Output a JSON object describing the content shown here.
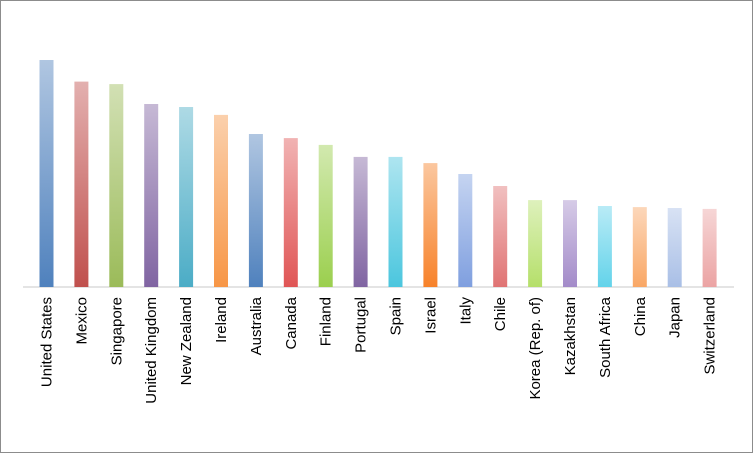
{
  "chart_data": {
    "type": "bar",
    "title": "",
    "xlabel": "",
    "ylabel": "",
    "ylim": [
      0,
      100
    ],
    "grid": false,
    "legend": "none",
    "categories": [
      "United States",
      "Mexico",
      "Singapore",
      "United Kingdom",
      "New Zealand",
      "Ireland",
      "Australia",
      "Canada",
      "Finland",
      "Portugal",
      "Spain",
      "Israel",
      "Italy",
      "Chile",
      "Korea (Rep. of)",
      "Kazakhstan",
      "South Africa",
      "China",
      "Japan",
      "Switzerland"
    ],
    "values": [
      100,
      90.5,
      89.4,
      80.6,
      79.3,
      75.8,
      67.4,
      65.6,
      62.6,
      57.3,
      57.3,
      54.6,
      49.8,
      44.5,
      38.3,
      38.3,
      35.7,
      35.2,
      34.8,
      34.4
    ],
    "colors": [
      "#4f81bd",
      "#c0504d",
      "#9bbb59",
      "#8064a2",
      "#4bacc6",
      "#f79646",
      "#4f81bd",
      "#e05555",
      "#9bcf4e",
      "#8064a2",
      "#4bc6de",
      "#f7822a",
      "#7f9fdf",
      "#e07373",
      "#b5df6a",
      "#a38bc9",
      "#63d3ea",
      "#f9a765",
      "#a9bfe6",
      "#eba3a3"
    ]
  }
}
